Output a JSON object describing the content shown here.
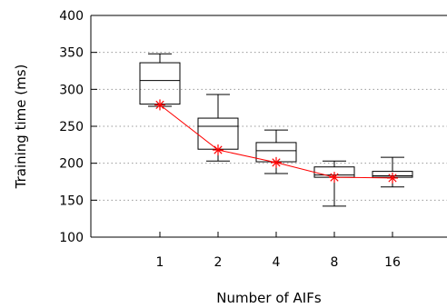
{
  "chart_data": {
    "type": "box",
    "title": "",
    "xlabel": "Number of AIFs",
    "ylabel": "Training time (ms)",
    "ylim": [
      100,
      400
    ],
    "yticks": [
      100,
      150,
      200,
      250,
      300,
      350,
      400
    ],
    "grid": "horizontal dotted",
    "categories": [
      "1",
      "2",
      "4",
      "8",
      "16"
    ],
    "boxes": [
      {
        "category": "1",
        "min": 277,
        "q1": 280,
        "median": 312,
        "q3": 336,
        "max": 348
      },
      {
        "category": "2",
        "min": 203,
        "q1": 219,
        "median": 250,
        "q3": 261,
        "max": 293
      },
      {
        "category": "4",
        "min": 186,
        "q1": 202,
        "median": 217,
        "q3": 228,
        "max": 245
      },
      {
        "category": "8",
        "min": 142,
        "q1": 181,
        "median": 184,
        "q3": 195,
        "max": 203
      },
      {
        "category": "16",
        "min": 168,
        "q1": 181,
        "median": 183,
        "q3": 189,
        "max": 208
      }
    ],
    "series": [
      {
        "values": [
          279,
          218,
          201,
          181,
          180
        ],
        "color": "#ff0000",
        "marker": "asterisk"
      }
    ]
  }
}
